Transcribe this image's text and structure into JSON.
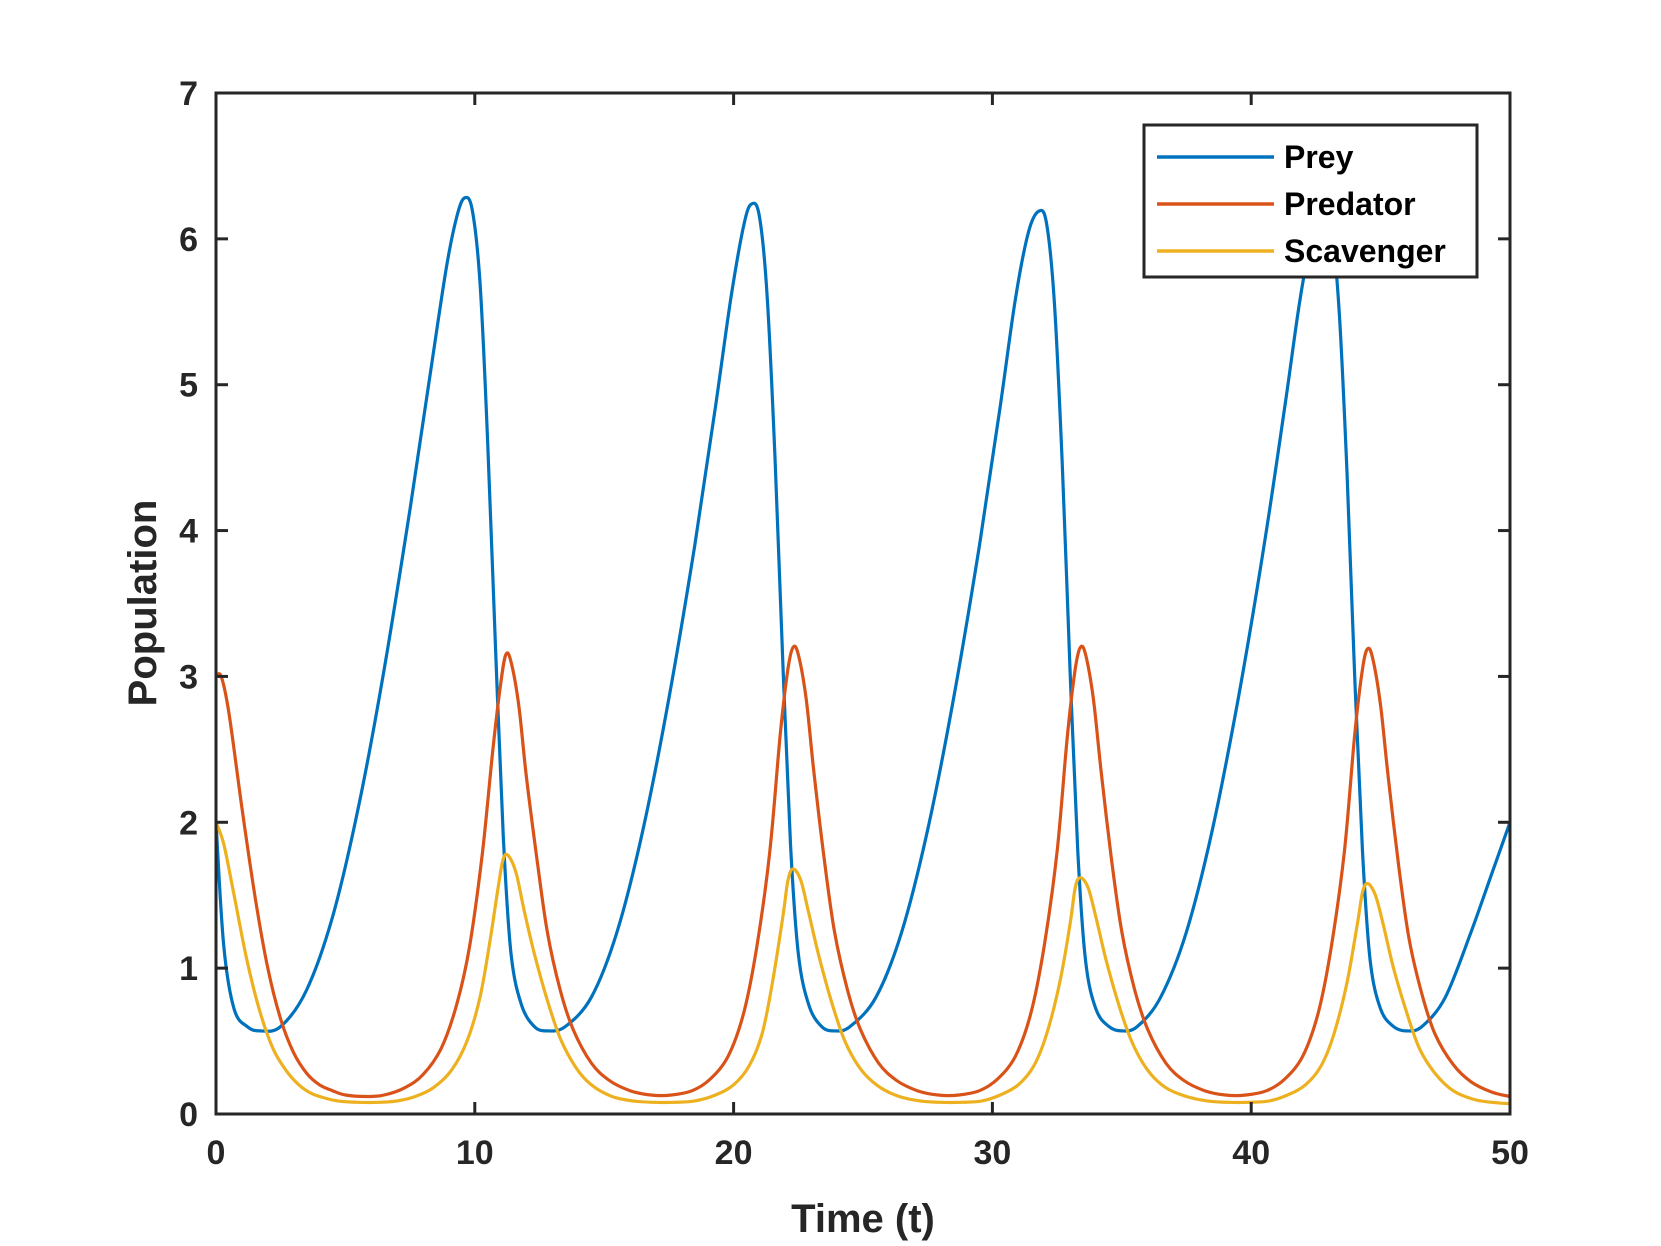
{
  "chart_data": {
    "type": "line",
    "title": "",
    "xlabel": "Time (t)",
    "ylabel": "Population",
    "xlim": [
      0,
      50
    ],
    "ylim": [
      0,
      7
    ],
    "xticks": [
      0,
      10,
      20,
      30,
      40,
      50
    ],
    "yticks": [
      0,
      1,
      2,
      3,
      4,
      5,
      6,
      7
    ],
    "grid": false,
    "legend_position": "top-right",
    "series": [
      {
        "name": "Prey",
        "color": "#0072BD",
        "x": [
          0,
          0.3,
          0.7,
          1.2,
          1.7,
          2.5,
          3.5,
          4.5,
          5.5,
          6.5,
          7.5,
          8.3,
          8.9,
          9.3,
          9.6,
          9.9,
          10.2,
          10.5,
          10.8,
          11.1,
          11.4,
          11.8,
          12.3,
          12.8,
          13.5,
          14.5,
          15.5,
          16.5,
          17.5,
          18.5,
          19.3,
          19.9,
          20.4,
          20.7,
          21.0,
          21.3,
          21.6,
          21.9,
          22.2,
          22.5,
          22.9,
          23.4,
          23.9,
          24.5,
          25.5,
          26.5,
          27.5,
          28.5,
          29.5,
          30.3,
          30.9,
          31.4,
          31.8,
          32.1,
          32.4,
          32.7,
          33.0,
          33.3,
          33.6,
          34.0,
          34.5,
          35.0,
          35.6,
          36.5,
          37.5,
          38.5,
          39.5,
          40.5,
          41.3,
          41.9,
          42.4,
          42.8,
          43.1,
          43.4,
          43.7,
          44.0,
          44.3,
          44.6,
          45.0,
          45.5,
          46.0,
          46.6,
          47.5,
          48.5,
          49.3,
          50.0
        ],
        "values": [
          2.0,
          1.15,
          0.72,
          0.6,
          0.57,
          0.6,
          0.85,
          1.35,
          2.1,
          3.05,
          4.15,
          5.1,
          5.8,
          6.15,
          6.28,
          6.2,
          5.7,
          4.6,
          3.2,
          1.9,
          1.1,
          0.75,
          0.6,
          0.57,
          0.6,
          0.8,
          1.25,
          1.95,
          2.85,
          3.9,
          4.85,
          5.6,
          6.1,
          6.24,
          6.15,
          5.6,
          4.5,
          3.1,
          1.85,
          1.1,
          0.75,
          0.6,
          0.57,
          0.6,
          0.8,
          1.25,
          1.95,
          2.85,
          3.9,
          4.85,
          5.6,
          6.05,
          6.19,
          6.1,
          5.55,
          4.45,
          3.05,
          1.8,
          1.05,
          0.72,
          0.6,
          0.57,
          0.6,
          0.8,
          1.25,
          1.95,
          2.85,
          3.9,
          4.85,
          5.6,
          6.05,
          6.17,
          6.08,
          5.5,
          4.4,
          3.0,
          1.8,
          1.05,
          0.72,
          0.6,
          0.57,
          0.6,
          0.8,
          1.25,
          1.65,
          2.0
        ]
      },
      {
        "name": "Predator",
        "color": "#D95319",
        "x": [
          0,
          0.2,
          0.5,
          1.0,
          1.5,
          2.0,
          2.5,
          3.0,
          3.5,
          4.0,
          4.5,
          5.0,
          5.8,
          6.5,
          7.3,
          8.0,
          8.7,
          9.3,
          9.8,
          10.3,
          10.7,
          11.0,
          11.2,
          11.4,
          11.7,
          12.0,
          12.4,
          12.8,
          13.3,
          13.8,
          14.5,
          15.2,
          16.0,
          16.8,
          17.6,
          18.4,
          19.1,
          19.8,
          20.4,
          20.9,
          21.4,
          21.8,
          22.1,
          22.3,
          22.5,
          22.8,
          23.1,
          23.5,
          23.9,
          24.4,
          24.9,
          25.6,
          26.3,
          27.1,
          27.9,
          28.7,
          29.5,
          30.2,
          30.9,
          31.5,
          32.0,
          32.5,
          32.9,
          33.2,
          33.4,
          33.6,
          33.9,
          34.2,
          34.6,
          35.0,
          35.5,
          36.0,
          36.7,
          37.4,
          38.2,
          39.0,
          39.8,
          40.6,
          41.3,
          42.0,
          42.6,
          43.1,
          43.6,
          44.0,
          44.3,
          44.5,
          44.7,
          45.0,
          45.3,
          45.7,
          46.1,
          46.6,
          47.1,
          47.8,
          48.5,
          49.3,
          50.0
        ],
        "values": [
          3.0,
          3.0,
          2.75,
          2.1,
          1.5,
          1.0,
          0.65,
          0.42,
          0.28,
          0.2,
          0.16,
          0.13,
          0.12,
          0.13,
          0.18,
          0.27,
          0.45,
          0.75,
          1.15,
          1.8,
          2.5,
          2.95,
          3.15,
          3.1,
          2.8,
          2.3,
          1.75,
          1.25,
          0.85,
          0.58,
          0.35,
          0.23,
          0.16,
          0.13,
          0.13,
          0.16,
          0.24,
          0.4,
          0.7,
          1.15,
          1.8,
          2.6,
          3.05,
          3.2,
          3.15,
          2.85,
          2.35,
          1.75,
          1.25,
          0.85,
          0.58,
          0.35,
          0.23,
          0.16,
          0.13,
          0.13,
          0.16,
          0.24,
          0.4,
          0.7,
          1.15,
          1.8,
          2.6,
          3.05,
          3.2,
          3.15,
          2.85,
          2.35,
          1.75,
          1.25,
          0.85,
          0.58,
          0.35,
          0.23,
          0.16,
          0.13,
          0.13,
          0.16,
          0.24,
          0.4,
          0.7,
          1.15,
          1.8,
          2.6,
          3.05,
          3.19,
          3.12,
          2.8,
          2.3,
          1.7,
          1.2,
          0.82,
          0.55,
          0.34,
          0.22,
          0.15,
          0.12
        ]
      },
      {
        "name": "Scavenger",
        "color": "#EDB120",
        "x": [
          0,
          0.3,
          0.7,
          1.2,
          1.7,
          2.2,
          2.7,
          3.2,
          3.7,
          4.2,
          4.7,
          5.5,
          6.3,
          7.0,
          7.7,
          8.4,
          9.1,
          9.7,
          10.2,
          10.6,
          10.9,
          11.1,
          11.3,
          11.6,
          11.9,
          12.3,
          12.8,
          13.3,
          13.9,
          14.5,
          15.3,
          16.1,
          16.9,
          17.7,
          18.5,
          19.3,
          20.0,
          20.6,
          21.1,
          21.5,
          21.9,
          22.1,
          22.3,
          22.6,
          22.9,
          23.3,
          23.8,
          24.3,
          24.9,
          25.6,
          26.4,
          27.2,
          28.0,
          28.8,
          29.6,
          30.3,
          31.0,
          31.6,
          32.1,
          32.6,
          33.0,
          33.2,
          33.4,
          33.7,
          34.0,
          34.4,
          34.9,
          35.4,
          36.0,
          36.7,
          37.5,
          38.3,
          39.1,
          39.9,
          40.7,
          41.4,
          42.1,
          42.7,
          43.2,
          43.7,
          44.1,
          44.3,
          44.5,
          44.8,
          45.1,
          45.5,
          46.0,
          46.5,
          47.1,
          47.8,
          48.6,
          49.3,
          50.0
        ],
        "values": [
          2.0,
          1.85,
          1.5,
          1.05,
          0.7,
          0.45,
          0.3,
          0.2,
          0.14,
          0.11,
          0.09,
          0.08,
          0.08,
          0.09,
          0.12,
          0.18,
          0.3,
          0.5,
          0.8,
          1.2,
          1.55,
          1.75,
          1.77,
          1.65,
          1.4,
          1.1,
          0.78,
          0.52,
          0.32,
          0.2,
          0.12,
          0.09,
          0.08,
          0.08,
          0.09,
          0.13,
          0.2,
          0.33,
          0.55,
          0.9,
          1.35,
          1.6,
          1.68,
          1.6,
          1.38,
          1.08,
          0.76,
          0.5,
          0.31,
          0.19,
          0.12,
          0.09,
          0.08,
          0.08,
          0.09,
          0.13,
          0.2,
          0.33,
          0.55,
          0.9,
          1.3,
          1.55,
          1.62,
          1.55,
          1.35,
          1.05,
          0.74,
          0.49,
          0.3,
          0.18,
          0.12,
          0.09,
          0.08,
          0.08,
          0.09,
          0.13,
          0.2,
          0.33,
          0.55,
          0.9,
          1.3,
          1.52,
          1.58,
          1.5,
          1.3,
          1.0,
          0.7,
          0.45,
          0.28,
          0.16,
          0.1,
          0.08,
          0.07
        ]
      }
    ]
  }
}
